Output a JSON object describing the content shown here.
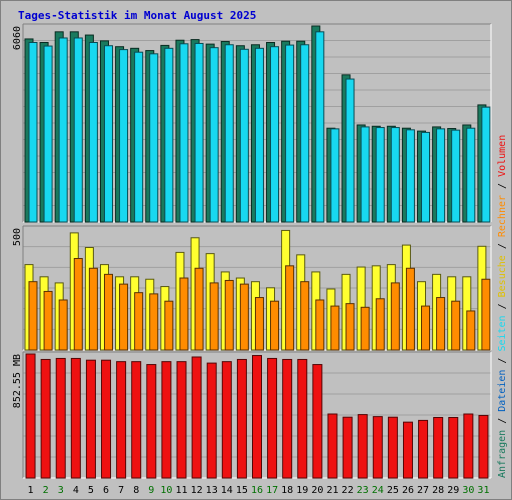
{
  "title": "Tages-Statistik im Monat August 2025",
  "colors": {
    "background": "#c0c0c0",
    "title": "#0000d0",
    "day_weekday": "#000000",
    "day_weekend": "#007000",
    "anfragen": "#1a7a5e",
    "dateien": "#18d8f0",
    "seiten": "#0060c0",
    "besuche": "#ffff30",
    "rechner": "#ff8c00",
    "volumen": "#ee1111"
  },
  "chart_data": [
    {
      "type": "bar",
      "panel": "top",
      "ymax_label": "6060",
      "ylim": [
        0,
        6060
      ],
      "categories": [
        "1",
        "2",
        "3",
        "4",
        "5",
        "6",
        "7",
        "8",
        "9",
        "10",
        "11",
        "12",
        "13",
        "14",
        "15",
        "16",
        "17",
        "18",
        "19",
        "20",
        "21",
        "22",
        "23",
        "24",
        "25",
        "26",
        "27",
        "28",
        "29",
        "30",
        "31"
      ],
      "weekend_days": [
        "2",
        "3",
        "9",
        "10",
        "16",
        "17",
        "23",
        "24",
        "30",
        "31"
      ],
      "series": [
        {
          "name": "Anfragen",
          "color": "#1a7a5e",
          "values": [
            5660,
            5550,
            5880,
            5880,
            5780,
            5600,
            5420,
            5370,
            5300,
            5460,
            5620,
            5640,
            5500,
            5580,
            5450,
            5480,
            5550,
            5590,
            5590,
            6060,
            2900,
            4550,
            3000,
            2960,
            2960,
            2900,
            2810,
            2940,
            2890,
            3000,
            3620
          ]
        },
        {
          "name": "Dateien",
          "color": "#18d8f0",
          "values": [
            5550,
            5440,
            5690,
            5690,
            5550,
            5450,
            5330,
            5250,
            5200,
            5370,
            5510,
            5520,
            5390,
            5480,
            5340,
            5370,
            5420,
            5470,
            5480,
            5880,
            2880,
            4420,
            2940,
            2920,
            2920,
            2850,
            2770,
            2880,
            2840,
            2900,
            3550
          ]
        }
      ]
    },
    {
      "type": "bar",
      "panel": "middle",
      "ymax_label": "500",
      "ylim": [
        0,
        500
      ],
      "categories": [
        "1",
        "2",
        "3",
        "4",
        "5",
        "6",
        "7",
        "8",
        "9",
        "10",
        "11",
        "12",
        "13",
        "14",
        "15",
        "16",
        "17",
        "18",
        "19",
        "20",
        "21",
        "22",
        "23",
        "24",
        "25",
        "26",
        "27",
        "28",
        "29",
        "30",
        "31"
      ],
      "series": [
        {
          "name": "Besuche",
          "color": "#ffff30",
          "values": [
            350,
            300,
            275,
            480,
            420,
            350,
            300,
            300,
            290,
            260,
            400,
            460,
            395,
            320,
            295,
            280,
            255,
            490,
            390,
            320,
            250,
            310,
            340,
            345,
            350,
            430,
            280,
            310,
            300,
            300,
            425
          ]
        },
        {
          "name": "Rechner",
          "color": "#ff8c00",
          "values": [
            280,
            240,
            205,
            375,
            335,
            310,
            270,
            235,
            230,
            200,
            295,
            335,
            275,
            285,
            270,
            215,
            200,
            345,
            280,
            205,
            180,
            190,
            175,
            210,
            275,
            335,
            180,
            215,
            200,
            160,
            290
          ]
        }
      ]
    },
    {
      "type": "bar",
      "panel": "bottom",
      "ymax_label": "852.55 MB",
      "ylim": [
        0,
        852.55
      ],
      "unit": "MB",
      "categories": [
        "1",
        "2",
        "3",
        "4",
        "5",
        "6",
        "7",
        "8",
        "9",
        "10",
        "11",
        "12",
        "13",
        "14",
        "15",
        "16",
        "17",
        "18",
        "19",
        "20",
        "21",
        "22",
        "23",
        "24",
        "25",
        "26",
        "27",
        "28",
        "29",
        "30",
        "31"
      ],
      "series": [
        {
          "name": "Volumen",
          "color": "#ee1111",
          "values": [
            852.55,
            815,
            822,
            822,
            810,
            810,
            800,
            800,
            780,
            800,
            800,
            832,
            790,
            800,
            815,
            842,
            822,
            815,
            815,
            780,
            440,
            418,
            436,
            422,
            418,
            384,
            396,
            416,
            416,
            440,
            430
          ]
        }
      ]
    }
  ],
  "right_legend": [
    {
      "text": "Anfragen",
      "color": "#1a7a5e"
    },
    {
      "text": "/",
      "color": "#000000"
    },
    {
      "text": "Dateien",
      "color": "#0060c0"
    },
    {
      "text": "/",
      "color": "#000000"
    },
    {
      "text": "Seiten",
      "color": "#18d8f0"
    },
    {
      "text": "/",
      "color": "#000000"
    },
    {
      "text": "Besuche",
      "color": "#e0c000"
    },
    {
      "text": "/",
      "color": "#000000"
    },
    {
      "text": "Rechner",
      "color": "#ff8c00"
    },
    {
      "text": "/",
      "color": "#000000"
    },
    {
      "text": "Volumen",
      "color": "#ee1111"
    }
  ]
}
